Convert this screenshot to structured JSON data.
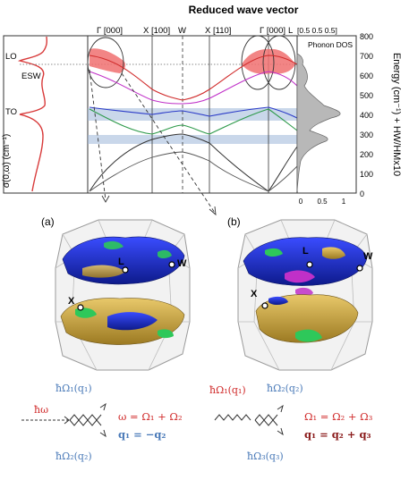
{
  "figure": {
    "title": "Reduced wave vector",
    "kpoints": [
      {
        "label": "Γ [000]"
      },
      {
        "label": "X [100]"
      },
      {
        "label": "W"
      },
      {
        "label": "X [110]"
      },
      {
        "label": "Γ [000]"
      },
      {
        "label": "L"
      },
      {
        "label": "[0.5 0.5 0.5]"
      }
    ],
    "dos_label": "Phonon DOS",
    "left_axis_label": "σ(0,ω) (cm⁻¹)",
    "left_peak_labels": [
      "LO",
      "ESW",
      "TO"
    ],
    "right_axis_label": "Energy (cm⁻¹) + HW/HMx10",
    "energy_ticks": [
      "800",
      "700",
      "600",
      "500",
      "400",
      "300",
      "200",
      "100",
      "0"
    ],
    "panel_labels": [
      "(a)",
      "(b)"
    ],
    "bz_labels_a": [
      "L",
      "W",
      "X"
    ],
    "bz_labels_b": [
      "L",
      "W",
      "X"
    ],
    "colors": {
      "red_band": "#f07070",
      "band_blue": "#9db7d8",
      "iso_blue": "#1a2fd6",
      "iso_gold": "#c9a640",
      "iso_green": "#2ec85a",
      "iso_magenta": "#c030c8"
    }
  },
  "equations": {
    "a": {
      "photon": "ħω",
      "phonon_top": "ħΩ₁(q₁)",
      "phonon_bottom": "ħΩ₂(q₂)",
      "energy_rel": "ω = Ω₁ + Ω₂",
      "momentum_rel": "q₁ = −q₂"
    },
    "b": {
      "phonon_in": "ħΩ₁(q₁)",
      "phonon_out_top": "ħΩ₂(q₂)",
      "phonon_out_bottom": "ħΩ₃(q₃)",
      "energy_rel": "Ω₁ = Ω₂ + Ω₃",
      "momentum_rel": "q₁ = q₂ + q₃"
    }
  }
}
